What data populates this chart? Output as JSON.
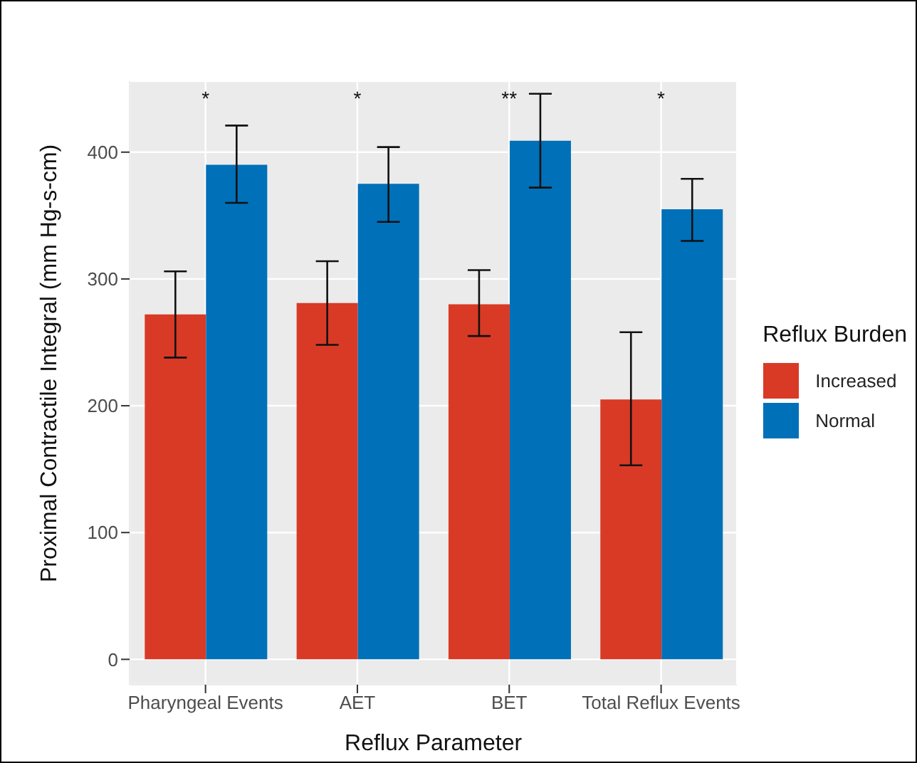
{
  "chart_data": {
    "type": "bar",
    "xlabel": "Reflux Parameter",
    "ylabel": "Proximal Contractile Integral (mm Hg-s-cm)",
    "legend_title": "Reflux Burden",
    "categories": [
      "Pharyngeal Events",
      "AET",
      "BET",
      "Total Reflux Events"
    ],
    "series": [
      {
        "name": "Increased",
        "color": "#d93a26",
        "values": [
          272,
          281,
          280,
          205
        ],
        "errors": [
          [
            238,
            306
          ],
          [
            248,
            314
          ],
          [
            255,
            307
          ],
          [
            153,
            258
          ]
        ]
      },
      {
        "name": "Normal",
        "color": "#0070b8",
        "values": [
          390,
          375,
          409,
          355
        ],
        "errors": [
          [
            360,
            421
          ],
          [
            345,
            404
          ],
          [
            372,
            446
          ],
          [
            330,
            379
          ]
        ]
      }
    ],
    "ylim": [
      -20,
      456
    ],
    "yticks": [
      0,
      100,
      200,
      300,
      400
    ],
    "grid": true,
    "legend": "right",
    "annotations": [
      "*",
      "*",
      "**",
      "*"
    ]
  }
}
